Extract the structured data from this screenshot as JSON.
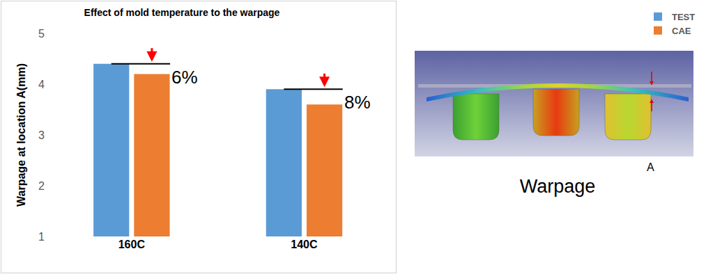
{
  "chart_data": {
    "type": "bar",
    "title": "Effect of mold temperature to the warpage",
    "y_label": "Warpage at location A(mm)",
    "categories": [
      "160C",
      "140C"
    ],
    "series": [
      {
        "name": "TEST",
        "color": "#5b9bd5",
        "values": [
          4.4,
          3.9
        ]
      },
      {
        "name": "CAE",
        "color": "#ed7d31",
        "values": [
          4.2,
          3.6
        ]
      }
    ],
    "ylim": [
      1,
      5
    ],
    "yticks": [
      1,
      2,
      3,
      4,
      5
    ],
    "grid": false,
    "legend": "top right",
    "annotations": [
      {
        "text": "6%",
        "category": "160C"
      },
      {
        "text": "8%",
        "category": "140C"
      }
    ]
  },
  "illustration": {
    "caption": "Warpage",
    "label": "A"
  }
}
